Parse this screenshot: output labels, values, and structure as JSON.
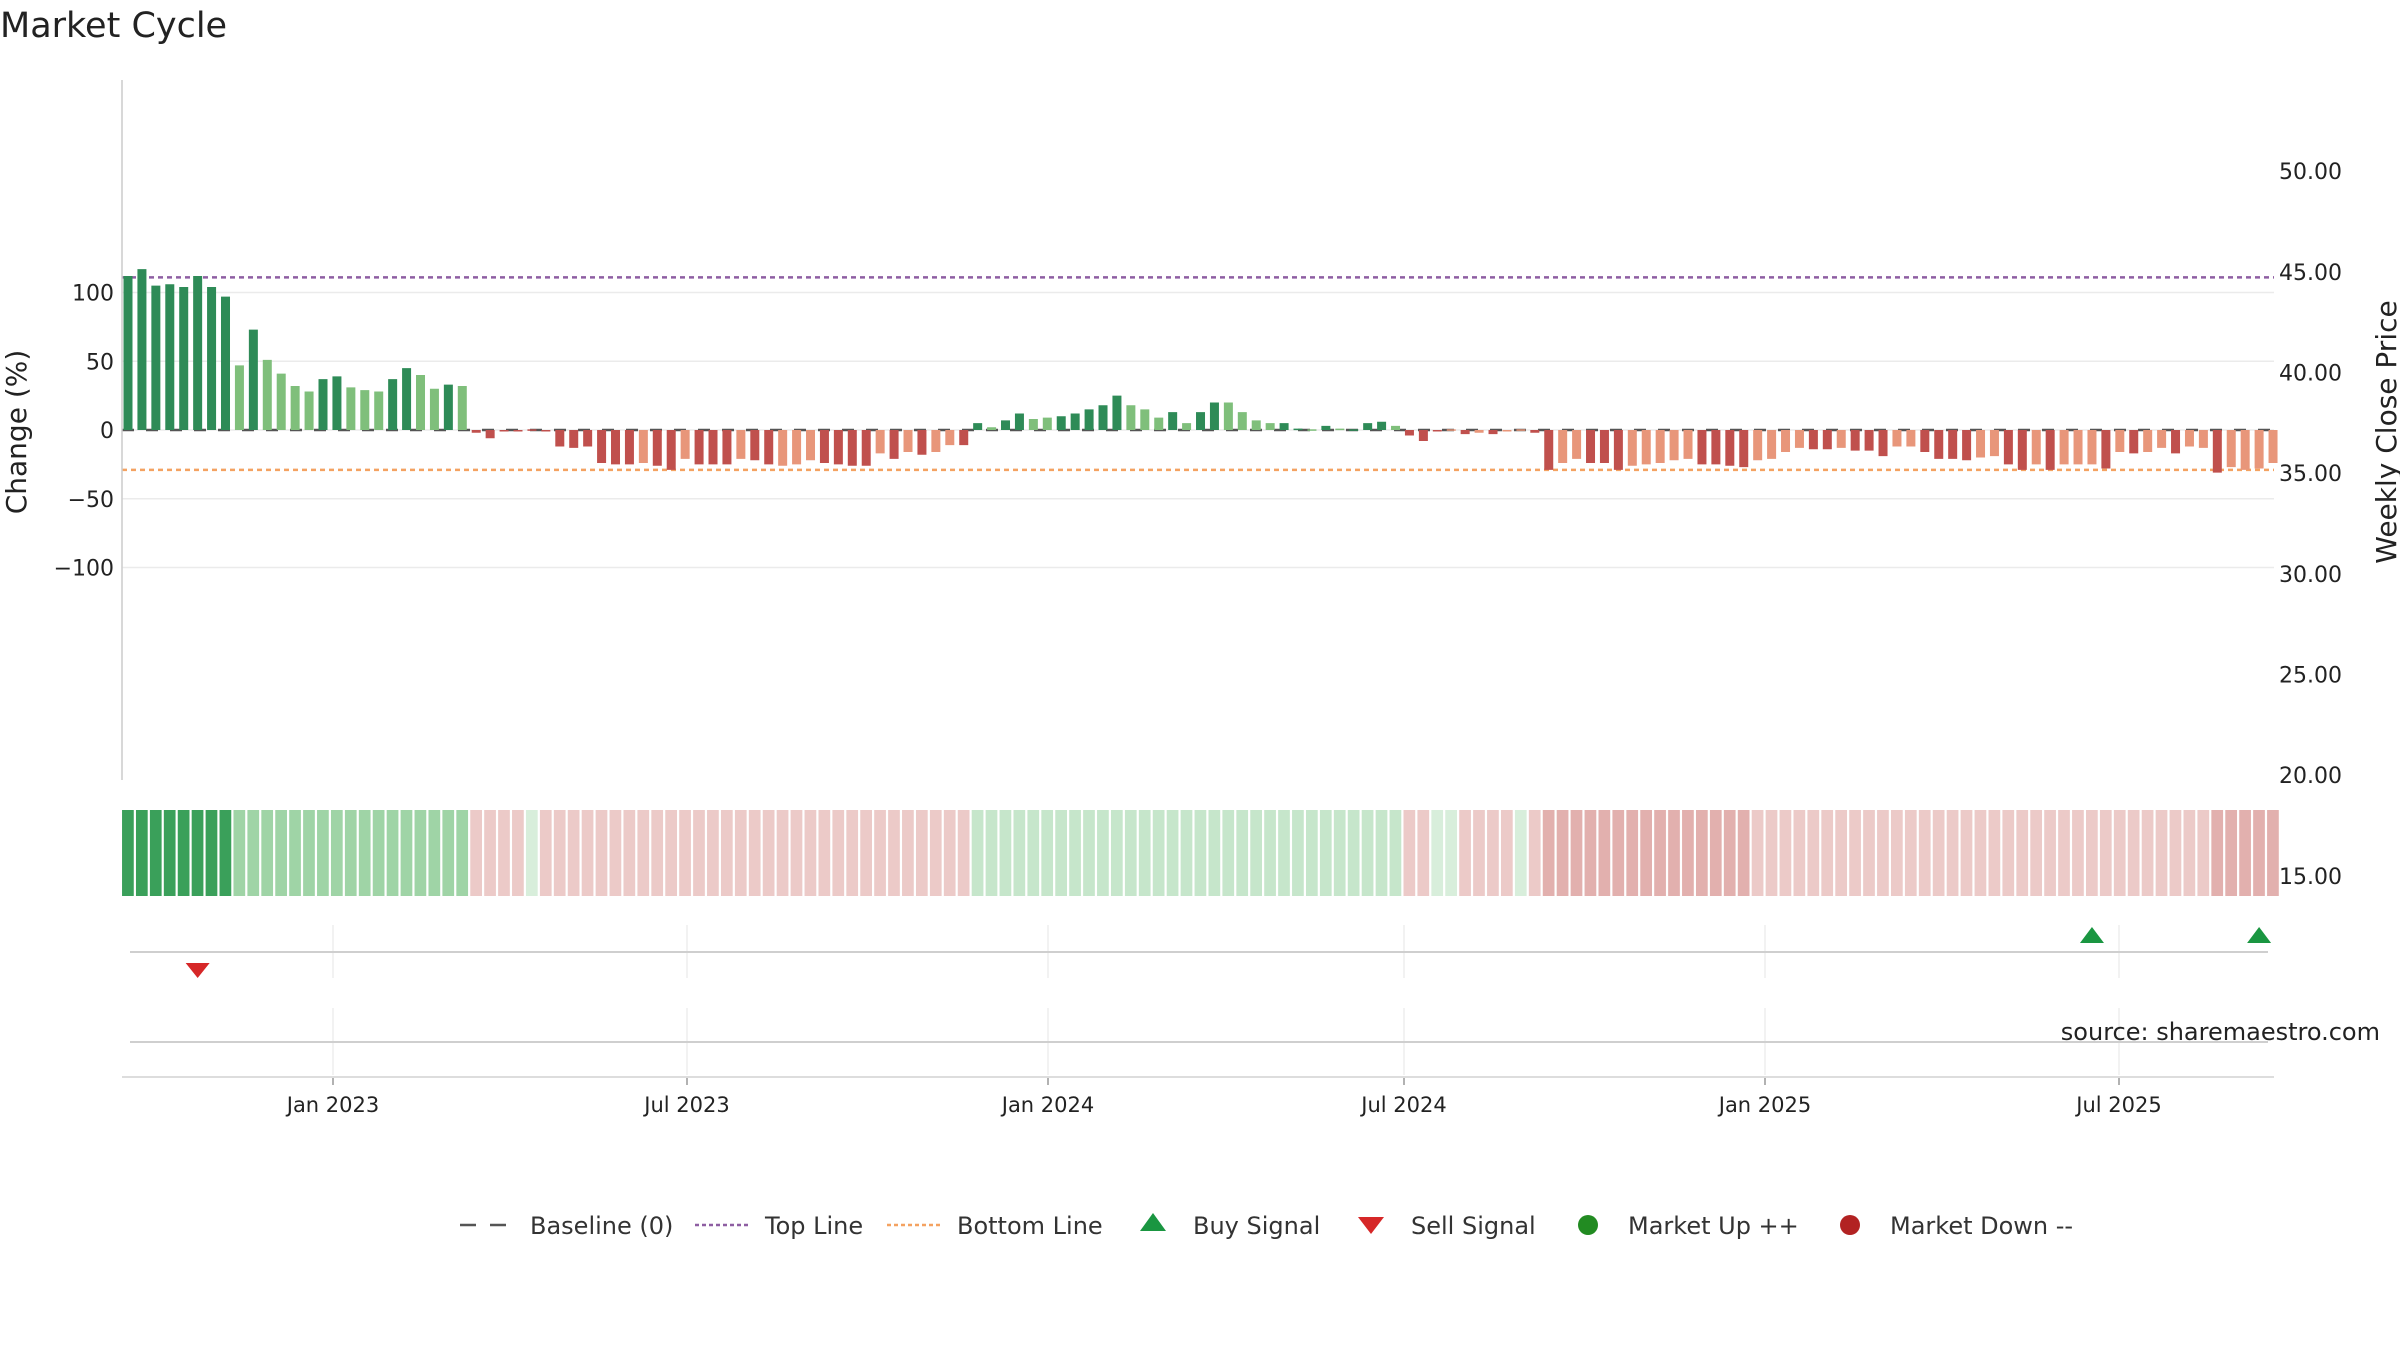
{
  "title": "Market Cycle",
  "source": "source: sharemaestro.com",
  "colors": {
    "green_dark": "#2e8b57",
    "green_light": "#7fbf7b",
    "red_dark": "#c0504d",
    "red_light": "#e8967a",
    "top_line": "#8e5ea2",
    "bottom_line": "#f4a261",
    "baseline": "#555555",
    "buy": "#1a9641",
    "sell": "#d62728",
    "market_up": "#228b22",
    "market_down": "#b22222"
  },
  "chart_data": {
    "type": "bar",
    "ylabel": "Change (%)",
    "y2label": "Weekly Close Price",
    "ylim": [
      -128,
      128
    ],
    "y2lim": [
      14.3,
      58.5
    ],
    "yticks": [
      100,
      50,
      0,
      -50,
      -100
    ],
    "ytick_labels": [
      "100",
      "50",
      "0",
      "−50",
      "−100"
    ],
    "y2ticks": [
      50,
      45,
      40,
      35,
      30,
      25,
      20,
      15
    ],
    "y2tick_labels": [
      "50.00",
      "45.00",
      "40.00",
      "35.00",
      "30.00",
      "25.00",
      "20.00",
      "15.00"
    ],
    "top_line": 111,
    "bottom_line": -29,
    "date_ticks": [
      "Jan 2023",
      "Jul 2023",
      "Jan 2024",
      "Jul 2024",
      "Jan 2025",
      "Jul 2025"
    ],
    "series": [
      {
        "name": "Change (%)",
        "values": [
          112,
          117,
          105,
          106,
          104,
          112,
          104,
          97,
          47,
          73,
          51,
          41,
          32,
          28,
          37,
          39,
          31,
          29,
          28,
          37,
          45,
          40,
          30,
          33,
          32,
          -2,
          -6,
          -1,
          -1,
          0.5,
          -0.5,
          -12,
          -13,
          -12,
          -24,
          -25,
          -25,
          -24,
          -26,
          -29,
          -21,
          -25,
          -25,
          -25,
          -21,
          -22,
          -25,
          -26,
          -25,
          -22,
          -24,
          -25,
          -26,
          -26,
          -17,
          -21,
          -16,
          -18,
          -16,
          -11,
          -11,
          5,
          2,
          7,
          12,
          8,
          9,
          10,
          12,
          15,
          18,
          25,
          18,
          15,
          9,
          13,
          5,
          13,
          20,
          20,
          13,
          7,
          5,
          5,
          1,
          0.5,
          3,
          1,
          0.5,
          5,
          6,
          3,
          -4,
          -8,
          -0.5,
          0.5,
          -3,
          -2,
          -3,
          -1,
          0.5,
          -2,
          -29,
          -24,
          -21,
          -24,
          -24,
          -29,
          -26,
          -25,
          -24,
          -22,
          -21,
          -25,
          -25,
          -26,
          -27,
          -22,
          -21,
          -16,
          -13,
          -14,
          -14,
          -13,
          -15,
          -15,
          -19,
          -12,
          -12,
          -16,
          -21,
          -21,
          -22,
          -20,
          -19,
          -25,
          -29,
          -25,
          -29,
          -25,
          -25,
          -25,
          -28,
          -16,
          -17,
          -16,
          -13,
          -17,
          -12,
          -13,
          -31,
          -27,
          -29,
          -28,
          -24
        ],
        "bands": [
          1,
          1,
          1,
          1,
          1,
          1,
          1,
          1,
          2,
          1,
          2,
          2,
          2,
          2,
          1,
          1,
          2,
          2,
          2,
          1,
          1,
          2,
          2,
          1,
          2,
          3,
          3,
          3,
          3,
          3,
          3,
          3,
          3,
          3,
          3,
          3,
          3,
          4,
          3,
          3,
          4,
          3,
          3,
          3,
          4,
          3,
          3,
          4,
          4,
          4,
          3,
          3,
          3,
          3,
          4,
          3,
          4,
          3,
          4,
          4,
          3,
          1,
          2,
          1,
          1,
          2,
          2,
          1,
          1,
          1,
          1,
          1,
          2,
          2,
          2,
          1,
          2,
          1,
          1,
          2,
          2,
          2,
          2,
          1,
          1,
          2,
          1,
          2,
          1,
          1,
          1,
          2,
          3,
          3,
          3,
          4,
          3,
          4,
          3,
          4,
          4,
          3,
          3,
          4,
          4,
          3,
          3,
          3,
          4,
          4,
          4,
          4,
          4,
          3,
          3,
          3,
          3,
          4,
          4,
          4,
          4,
          3,
          3,
          4,
          3,
          3,
          3,
          4,
          4,
          3,
          3,
          3,
          3,
          4,
          4,
          3,
          3,
          4,
          3,
          4,
          4,
          4,
          3,
          4,
          3,
          4,
          4,
          3,
          4,
          4,
          3,
          4,
          4,
          4,
          4
        ],
        "strip": [
          1,
          1,
          1,
          1,
          1,
          1,
          1,
          1,
          2,
          2,
          2,
          2,
          2,
          2,
          2,
          2,
          2,
          2,
          2,
          2,
          2,
          2,
          2,
          2,
          2,
          6,
          6,
          6,
          6,
          5,
          6,
          6,
          6,
          6,
          6,
          6,
          6,
          6,
          6,
          6,
          6,
          6,
          6,
          6,
          6,
          6,
          6,
          6,
          6,
          6,
          6,
          6,
          6,
          6,
          6,
          6,
          6,
          6,
          6,
          6,
          6,
          4,
          4,
          4,
          4,
          4,
          4,
          4,
          4,
          4,
          4,
          4,
          4,
          4,
          4,
          4,
          4,
          4,
          4,
          4,
          4,
          4,
          4,
          4,
          4,
          4,
          4,
          4,
          4,
          4,
          4,
          4,
          6,
          6,
          5,
          5,
          6,
          6,
          6,
          6,
          5,
          6,
          7,
          7,
          7,
          7,
          7,
          7,
          7,
          7,
          7,
          7,
          7,
          7,
          7,
          7,
          7,
          6,
          6,
          6,
          6,
          6,
          6,
          6,
          6,
          6,
          6,
          6,
          6,
          6,
          6,
          6,
          6,
          6,
          6,
          6,
          6,
          6,
          6,
          6,
          6,
          6,
          6,
          6,
          6,
          6,
          6,
          6,
          6,
          6,
          7,
          7,
          7,
          7,
          7
        ]
      },
      {
        "name": "Buy Signal",
        "indices": [
          141,
          153
        ]
      },
      {
        "name": "Sell Signal",
        "indices": [
          5
        ]
      }
    ]
  },
  "legend": {
    "items": [
      {
        "label": "Baseline (0)",
        "icon": "dash-line"
      },
      {
        "label": "Top Line",
        "icon": "dotted-purple-line"
      },
      {
        "label": "Bottom Line",
        "icon": "dotted-orange-line"
      },
      {
        "label": "Buy Signal",
        "icon": "triangle-up"
      },
      {
        "label": "Sell Signal",
        "icon": "triangle-down"
      },
      {
        "label": "Market Up ++",
        "icon": "circle-green"
      },
      {
        "label": "Market Down --",
        "icon": "circle-red"
      }
    ]
  }
}
